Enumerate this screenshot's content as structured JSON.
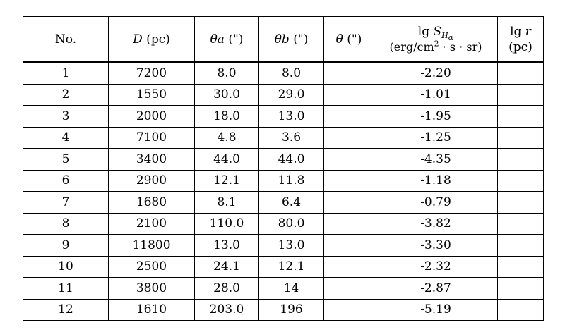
{
  "table": {
    "headers": {
      "no": "No.",
      "d_var": "D",
      "d_unit": " (pc)",
      "theta_a_var": "θa",
      "theta_a_unit": " (\")",
      "theta_b_var": "θb",
      "theta_b_unit": " (\")",
      "theta_var": "θ",
      "theta_unit": " (\")",
      "s_lg": "lg ",
      "s_var": "S",
      "s_sub": "H",
      "s_subsub": "α",
      "s_unit_pre": "(erg/cm",
      "s_unit_exp": "2",
      "s_unit_post": " · s · sr)",
      "r_lg": "lg ",
      "r_var": "r",
      "r_unit": " (pc)"
    },
    "rows": [
      {
        "no": "1",
        "d": "7200",
        "theta_a": "8.0",
        "theta_b": "8.0",
        "theta": "",
        "lgs": "-2.20",
        "lgr": ""
      },
      {
        "no": "2",
        "d": "1550",
        "theta_a": "30.0",
        "theta_b": "29.0",
        "theta": "",
        "lgs": "-1.01",
        "lgr": ""
      },
      {
        "no": "3",
        "d": "2000",
        "theta_a": "18.0",
        "theta_b": "13.0",
        "theta": "",
        "lgs": "-1.95",
        "lgr": ""
      },
      {
        "no": "4",
        "d": "7100",
        "theta_a": "4.8",
        "theta_b": "3.6",
        "theta": "",
        "lgs": "-1.25",
        "lgr": ""
      },
      {
        "no": "5",
        "d": "3400",
        "theta_a": "44.0",
        "theta_b": "44.0",
        "theta": "",
        "lgs": "-4.35",
        "lgr": ""
      },
      {
        "no": "6",
        "d": "2900",
        "theta_a": "12.1",
        "theta_b": "11.8",
        "theta": "",
        "lgs": "-1.18",
        "lgr": ""
      },
      {
        "no": "7",
        "d": "1680",
        "theta_a": "8.1",
        "theta_b": "6.4",
        "theta": "",
        "lgs": "-0.79",
        "lgr": ""
      },
      {
        "no": "8",
        "d": "2100",
        "theta_a": "110.0",
        "theta_b": "80.0",
        "theta": "",
        "lgs": "-3.82",
        "lgr": ""
      },
      {
        "no": "9",
        "d": "11800",
        "theta_a": "13.0",
        "theta_b": "13.0",
        "theta": "",
        "lgs": "-3.30",
        "lgr": ""
      },
      {
        "no": "10",
        "d": "2500",
        "theta_a": "24.1",
        "theta_b": "12.1",
        "theta": "",
        "lgs": "-2.32",
        "lgr": ""
      },
      {
        "no": "11",
        "d": "3800",
        "theta_a": "28.0",
        "theta_b": "14",
        "theta": "",
        "lgs": "-2.87",
        "lgr": ""
      },
      {
        "no": "12",
        "d": "1610",
        "theta_a": "203.0",
        "theta_b": "196",
        "theta": "",
        "lgs": "-5.19",
        "lgr": ""
      }
    ]
  }
}
